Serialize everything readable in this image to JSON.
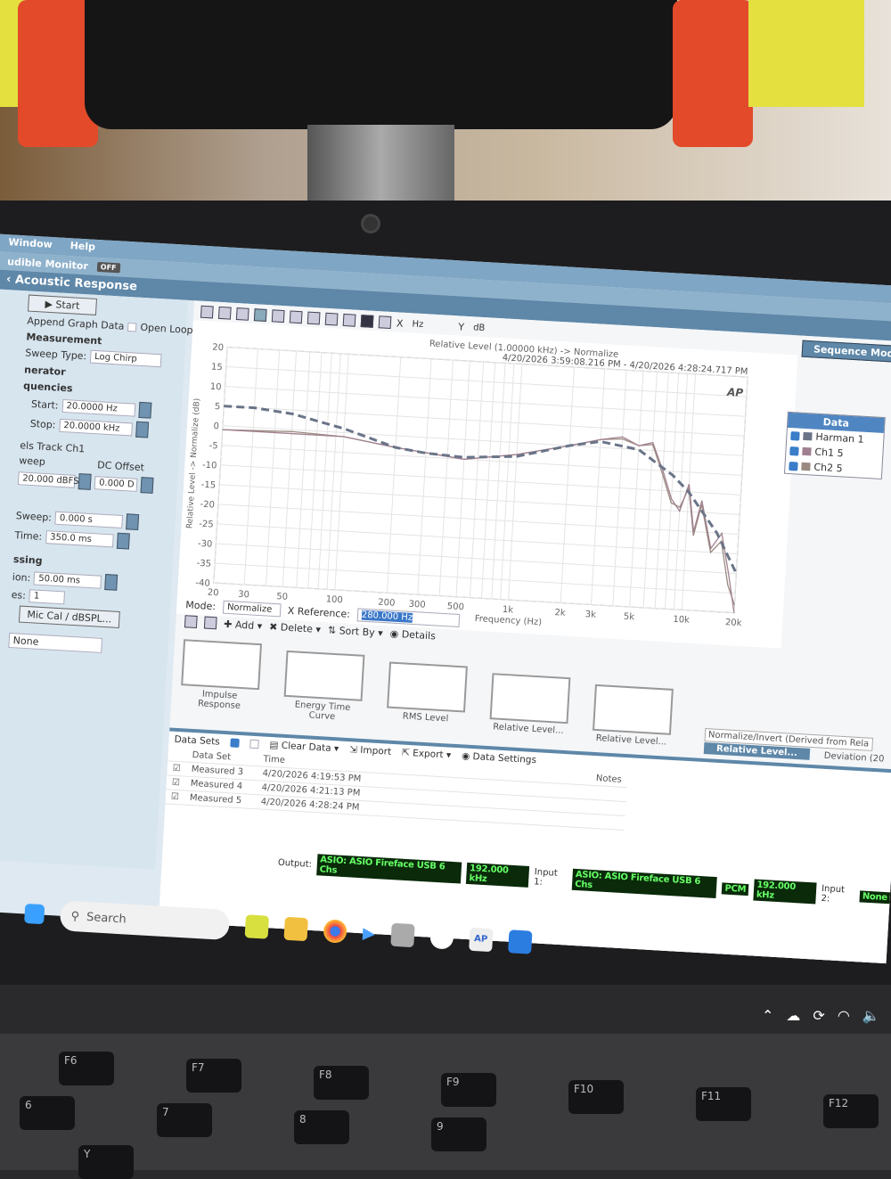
{
  "menu": {
    "items": [
      "Window",
      "Help"
    ],
    "monitor_label": "udible Monitor",
    "monitor_state": "OFF"
  },
  "panel_title": "Acoustic Response",
  "left": {
    "start_label": "Start",
    "append_label": "Append Graph Data",
    "open_loop_label": "Open Loop",
    "measurement_heading": "Measurement",
    "sweep_type_label": "Sweep Type:",
    "sweep_type_value": "Log Chirp",
    "generator_heading": "nerator",
    "frequencies_heading": "quencies",
    "start_freq_label": "Start:",
    "start_freq_value": "20.0000 Hz",
    "stop_freq_label": "Stop:",
    "stop_freq_value": "20.0000 kHz",
    "track_label": "els Track Ch1",
    "sweep_col": "weep",
    "dc_offset_label": "DC Offset",
    "level_value": "20.000 dBFS",
    "dc_value": "0.000 D",
    "pre_sweep_label": "Sweep:",
    "pre_sweep_value": "0.000 s",
    "time_label": "Time:",
    "time_value": "350.0 ms",
    "processing_heading": "ssing",
    "duration_label": "ion:",
    "duration_value": "50.00 ms",
    "averages_label": "es:",
    "averages_value": "1",
    "mic_cal_label": "Mic Cal / dBSPL...",
    "none_value": "None"
  },
  "toolbar": {
    "x_label": "X",
    "x_unit": "Hz",
    "y_label": "Y",
    "y_unit": "dB",
    "sequence_mode": "Sequence Mode"
  },
  "chart_data": {
    "type": "line",
    "title": "Relative Level (1.00000 kHz) -> Normalize",
    "subtitle": "4/20/2026 3:59:08.216 PM - 4/20/2026 4:28:24.717 PM",
    "xlabel": "Frequency (Hz)",
    "ylabel": "Relative Level -> Normalize (dB)",
    "x_scale": "log",
    "xlim": [
      20,
      20000
    ],
    "ylim": [
      -40,
      20
    ],
    "grid": true,
    "x_ticks": [
      "20",
      "30",
      "50",
      "100",
      "200",
      "300",
      "500",
      "1k",
      "2k",
      "3k",
      "5k",
      "10k",
      "20k"
    ],
    "x_tick_values": [
      20,
      30,
      50,
      100,
      200,
      300,
      500,
      1000,
      2000,
      3000,
      5000,
      10000,
      20000
    ],
    "y_ticks": [
      20,
      15,
      10,
      5,
      0,
      -5,
      -10,
      -15,
      -20,
      -25,
      -30,
      -35,
      -40
    ],
    "legend_title": "Data",
    "legend_placement": "right",
    "series": [
      {
        "name": "Harman 1",
        "color": "#6a7488",
        "style": "dashed",
        "x": [
          20,
          30,
          50,
          100,
          200,
          300,
          500,
          1000,
          2000,
          3000,
          5000,
          8000,
          10000,
          15000,
          20000
        ],
        "y": [
          5,
          5,
          4,
          1,
          -3,
          -4,
          -4.5,
          -3.5,
          0,
          1.5,
          0,
          -6,
          -10,
          -20,
          -30
        ]
      },
      {
        "name": "Ch1 5",
        "color": "#a08090",
        "style": "solid",
        "x": [
          20,
          50,
          100,
          200,
          500,
          1000,
          2000,
          3000,
          4000,
          5000,
          6000,
          7000,
          8000,
          9000,
          10000,
          11000,
          12000,
          14000,
          16000,
          18000,
          20000
        ],
        "y": [
          -1,
          -1,
          -1,
          -3,
          -5,
          -3,
          0,
          2,
          3,
          1,
          2,
          -5,
          -12,
          -15,
          -8,
          -20,
          -12,
          -24,
          -20,
          -30,
          -40
        ]
      },
      {
        "name": "Ch2 5",
        "color": "#9a8a80",
        "style": "solid",
        "x": [
          20,
          50,
          100,
          200,
          500,
          1000,
          2000,
          3000,
          4000,
          5000,
          6000,
          7000,
          8000,
          9000,
          10000,
          11000,
          12000,
          14000,
          16000,
          18000,
          20000
        ],
        "y": [
          -1,
          -0.5,
          -1,
          -3,
          -5,
          -3,
          0,
          2,
          2.5,
          1,
          1.5,
          -6,
          -13,
          -14,
          -9,
          -21,
          -13,
          -25,
          -22,
          -33,
          -38
        ]
      }
    ]
  },
  "controls": {
    "mode_label": "Mode:",
    "mode_value": "Normalize",
    "xref_label": "X Reference:",
    "xref_value": "280.000 Hz",
    "add": "Add",
    "delete": "Delete",
    "sort_by": "Sort By",
    "details": "Details"
  },
  "thumbnails": [
    "Impulse Response",
    "Energy Time Curve",
    "RMS Level",
    "Relative Level...",
    "Relative Level..."
  ],
  "tooltip": {
    "text": "Normalize/Invert (Derived from Rela",
    "selected": "Relative Level...",
    "deviation": "Deviation (20"
  },
  "datasets": {
    "label": "Data Sets",
    "clear": "Clear Data",
    "import": "Import",
    "export": "Export",
    "settings": "Data Settings",
    "columns": [
      "Data Set",
      "Time",
      "Notes"
    ],
    "rows": [
      {
        "name": "Measured 3",
        "time": "4/20/2026 4:19:53 PM"
      },
      {
        "name": "Measured 4",
        "time": "4/20/2026 4:21:13 PM"
      },
      {
        "name": "Measured 5",
        "time": "4/20/2026 4:28:24 PM"
      }
    ]
  },
  "status": {
    "output_label": "Output:",
    "output_device": "ASIO: ASIO Fireface USB 6 Chs",
    "output_rate": "192.000 kHz",
    "input1_label": "Input 1:",
    "input1_device": "ASIO: ASIO Fireface USB 6 Chs",
    "input1_format": "PCM",
    "input1_rate": "192.000 kHz",
    "input2_label": "Input 2:",
    "input2_value": "None"
  },
  "taskbar": {
    "search_placeholder": "Search"
  },
  "logo": "AP",
  "keys": [
    "F6",
    "F7",
    "F8",
    "F9",
    "F10",
    "F11",
    "F12",
    "6",
    "7",
    "8",
    "9",
    "Y"
  ]
}
